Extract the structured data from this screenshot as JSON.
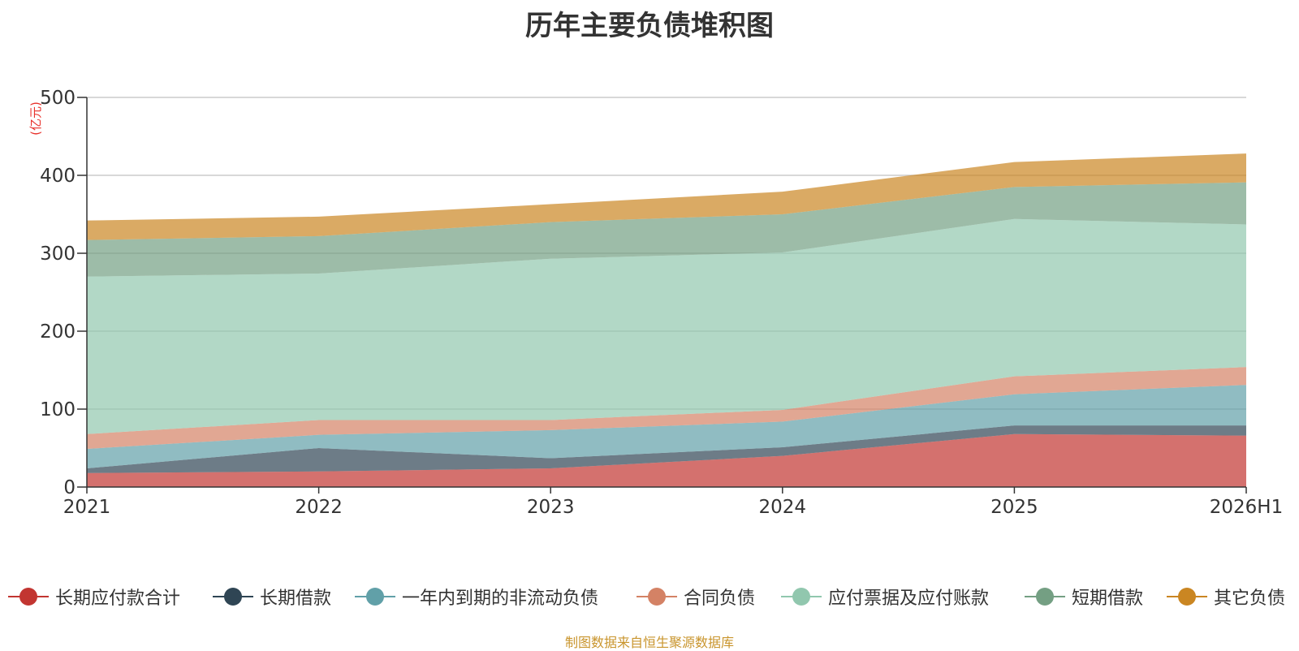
{
  "chart_data": {
    "type": "area",
    "stacked": true,
    "title": "历年主要负债堆积图",
    "ylabel": "(亿元)",
    "xlabel": "",
    "categories": [
      "2021",
      "2022",
      "2023",
      "2024",
      "2025",
      "2026H1"
    ],
    "ylim": [
      0,
      500
    ],
    "yticks": [
      0,
      100,
      200,
      300,
      400,
      500
    ],
    "grid": true,
    "legend_position": "bottom",
    "series": [
      {
        "name": "长期应付款合计",
        "color": "#c23531",
        "values": [
          18,
          20,
          24,
          40,
          68,
          66
        ]
      },
      {
        "name": "长期借款",
        "color": "#2f4554",
        "values": [
          6,
          30,
          13,
          11,
          11,
          13
        ]
      },
      {
        "name": "一年内到期的非流动负债",
        "color": "#61a0a8",
        "values": [
          25,
          17,
          36,
          33,
          40,
          52
        ]
      },
      {
        "name": "合同负债",
        "color": "#d48265",
        "values": [
          19,
          19,
          13,
          15,
          23,
          23
        ]
      },
      {
        "name": "应付票据及应付账款",
        "color": "#91c7ae",
        "values": [
          202,
          188,
          207,
          202,
          202,
          183
        ]
      },
      {
        "name": "短期借款",
        "color": "#749f83",
        "values": [
          47,
          48,
          47,
          49,
          41,
          54
        ]
      },
      {
        "name": "其它负债",
        "color": "#ca8622",
        "values": [
          25,
          25,
          23,
          29,
          32,
          37
        ]
      }
    ]
  },
  "source_note": "制图数据来自恒生聚源数据库"
}
